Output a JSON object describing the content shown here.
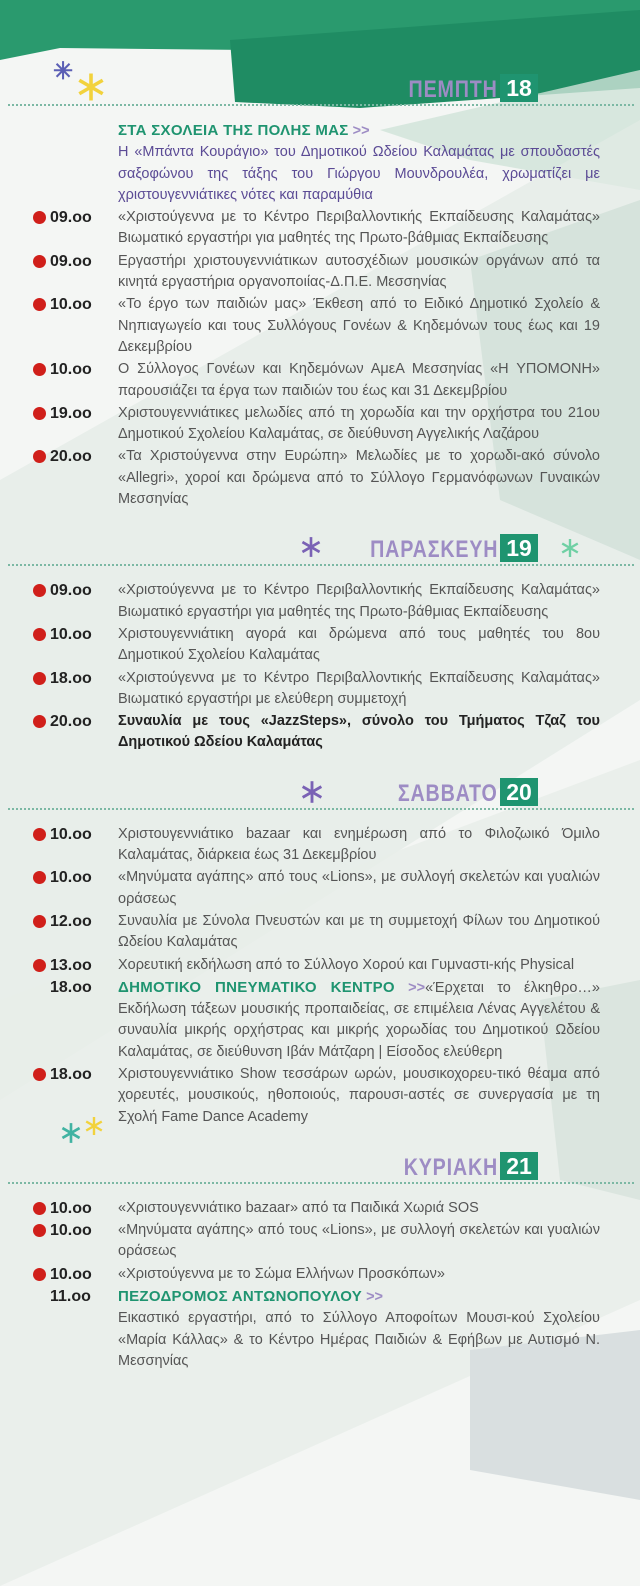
{
  "colors": {
    "accent_green": "#1f9470",
    "day_label": "#9d8cc4",
    "dot_red": "#d01f1a",
    "intro_text": "#5b4b95"
  },
  "days": [
    {
      "label": "ΠΕΜΠΤΗ",
      "number": "18",
      "entries": [
        {
          "time": "",
          "dot": false,
          "venue": "ΣΤΑ ΣΧΟΛΕΙΑ ΤΗΣ ΠΟΛΗΣ ΜΑΣ",
          "arrow": ">>",
          "break": true,
          "style": "purple",
          "text": "Η «Μπάντα Κουράγιο» του Δημοτικού Ωδείου Καλαμάτας με σπουδαστές σαξοφώνου της τάξης του Γιώργου Μουνδρουλέα, χρωματίζει με χριστουγεννιάτικες νότες και παραμύθια"
        },
        {
          "time": "09.oo",
          "dot": true,
          "text": "«Χριστούγεννα με το Κέντρο Περιβαλλοντικής Εκπαίδευσης Καλαμάτας» Βιωματικό εργαστήρι για μαθητές της Πρωτο-βάθμιας Εκπαίδευσης"
        },
        {
          "time": "09.oo",
          "dot": true,
          "text": "Εργαστήρι χριστουγεννιάτικων αυτοσχέδιων μουσικών οργάνων από τα κινητά εργαστήρια οργανοποιίας-Δ.Π.Ε. Μεσσηνίας"
        },
        {
          "time": "10.oo",
          "dot": true,
          "text": "«Το έργο των παιδιών μας» Έκθεση από το Ειδικό Δημοτικό Σχολείο & Νηπιαγωγείο και τους Συλλόγους Γονέων & Κηδεμόνων τους έως και 19 Δεκεμβρίου"
        },
        {
          "time": "10.oo",
          "dot": true,
          "text": "Ο Σύλλογος Γονέων και Κηδεμόνων ΑμεΑ Μεσσηνίας «Η ΥΠΟΜΟΝΗ» παρουσιάζει τα έργα των παιδιών του έως και 31 Δεκεμβρίου"
        },
        {
          "time": "19.oo",
          "dot": true,
          "text": "Χριστουγεννιάτικες μελωδίες από τη χορωδία και την ορχήστρα του 21ου Δημοτικού Σχολείου Καλαμάτας, σε διεύθυνση Αγγελικής Λαζάρου"
        },
        {
          "time": "20.oo",
          "dot": true,
          "text": "«Τα Χριστούγεννα στην Ευρώπη» Μελωδίες με το χορωδι-ακό σύνολο «Allegri», χοροί και δρώμενα από το Σύλλογο Γερμανόφωνων Γυναικών Μεσσηνίας"
        }
      ]
    },
    {
      "label": "ΠΑΡΑΣΚΕΥΗ",
      "number": "19",
      "entries": [
        {
          "time": "09.oo",
          "dot": true,
          "text": "«Χριστούγεννα με το Κέντρο Περιβαλλοντικής Εκπαίδευσης Καλαμάτας» Βιωματικό εργαστήρι για μαθητές της Πρωτο-βάθμιας Εκπαίδευσης"
        },
        {
          "time": "10.oo",
          "dot": true,
          "text": "Χριστουγεννιάτικη αγορά και δρώμενα από τους μαθητές του 8ου Δημοτικού Σχολείου Καλαμάτας"
        },
        {
          "time": "18.oo",
          "dot": true,
          "text": "«Χριστούγεννα με το Κέντρο Περιβαλλοντικής Εκπαίδευσης Καλαμάτας» Βιωματικό εργαστήρι με ελεύθερη συμμετοχή"
        },
        {
          "time": "20.oo",
          "dot": true,
          "style": "bold",
          "text": "Συναυλία με τους «JazzSteps», σύνολο του Τμήματος Τζαζ του Δημοτικού Ωδείου Καλαμάτας"
        }
      ]
    },
    {
      "label": "ΣΑΒΒΑΤΟ",
      "number": "20",
      "entries": [
        {
          "time": "10.oo",
          "dot": true,
          "text": "Χριστουγεννιάτικο bazaar και ενημέρωση από το Φιλοζωικό Όμιλο Καλαμάτας, διάρκεια έως 31 Δεκεμβρίου"
        },
        {
          "time": "10.oo",
          "dot": true,
          "text": "«Μηνύματα αγάπης» από τους «Lions», με συλλογή σκελετών και γυαλιών οράσεως"
        },
        {
          "time": "12.oo",
          "dot": true,
          "text": "Συναυλία με Σύνολα Πνευστών και με τη συμμετοχή Φίλων του Δημοτικού Ωδείου Καλαμάτας"
        },
        {
          "time": "13.oo",
          "dot": true,
          "text": "Χορευτική εκδήλωση από το Σύλλογο Χορού και Γυμναστι-κής Physical"
        },
        {
          "time": "18.oo",
          "dot": false,
          "venue": "ΔΗΜΟΤΙΚΟ ΠΝΕΥΜΑΤΙΚΟ ΚΕΝΤΡΟ",
          "arrow": ">>",
          "break": false,
          "text": "«Έρχεται το έλκηθρο…» Εκδήλωση τάξεων μουσικής προπαιδείας, σε επιμέλεια Λένας Αγγελέτου & συναυλία μικρής ορχήστρας και μικρής χορωδίας του Δημοτικού Ωδείου Καλαμάτας, σε διεύθυνση Ιβάν Μάτζαρη | Είσοδος ελεύθερη"
        },
        {
          "time": "18.oo",
          "dot": true,
          "text": "Χριστουγεννιάτικο Show τεσσάρων ωρών, μουσικοχορευ-τικό θέαμα από χορευτές, μουσικούς, ηθοποιούς, παρουσι-αστές σε συνεργασία με τη Σχολή Fame Dance Academy"
        }
      ]
    },
    {
      "label": "ΚΥΡΙΑΚΗ",
      "number": "21",
      "entries": [
        {
          "time": "10.oo",
          "dot": true,
          "text": "«Χριστουγεννιάτικο bazaar» από τα Παιδικά Χωριά SOS"
        },
        {
          "time": "10.oo",
          "dot": true,
          "text": "«Μηνύματα αγάπης» από τους «Lions», με συλλογή σκελετών και γυαλιών οράσεως"
        },
        {
          "time": "10.oo",
          "dot": true,
          "text": "«Χριστούγεννα με το Σώμα Ελλήνων Προσκόπων»"
        },
        {
          "time": "11.oo",
          "dot": false,
          "venue": "ΠΕΖΟΔΡΟΜΟΣ ΑΝΤΩΝΟΠΟΥΛΟΥ",
          "arrow": ">>",
          "break": true,
          "text": "Εικαστικό εργαστήρι, από το Σύλλογο Αποφοίτων Μουσι-κού Σχολείου «Μαρία Κάλλας» & το Κέντρο Ημέρας Παιδιών & Εφήβων με Αυτισμό Ν. Μεσσηνίας"
        }
      ]
    }
  ],
  "decorations": {
    "icon": "snowflake-icon",
    "glyph": "✳"
  }
}
